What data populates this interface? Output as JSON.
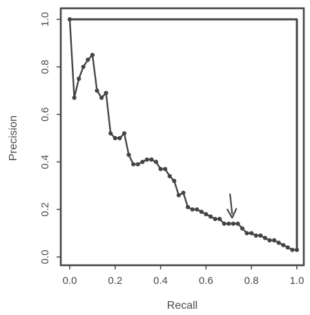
{
  "chart_data": {
    "type": "line",
    "xlabel": "Recall",
    "ylabel": "Precision",
    "xlim": [
      0,
      1
    ],
    "ylim": [
      0,
      1
    ],
    "grid": false,
    "x_ticks": [
      "0.0",
      "0.2",
      "0.4",
      "0.6",
      "0.8",
      "1.0"
    ],
    "y_ticks": [
      "0.0",
      "0.2",
      "0.4",
      "0.6",
      "0.8",
      "1.0"
    ],
    "series": [
      {
        "style": "step-line",
        "x": [
          0.0,
          0.0,
          1.0,
          1.0
        ],
        "y": [
          1.0,
          1.0,
          1.0,
          0.03
        ]
      },
      {
        "style": "line-with-markers",
        "x": [
          0.0,
          0.02,
          0.04,
          0.06,
          0.08,
          0.1,
          0.12,
          0.14,
          0.16,
          0.18,
          0.2,
          0.22,
          0.24,
          0.26,
          0.28,
          0.3,
          0.32,
          0.34,
          0.36,
          0.38,
          0.4,
          0.42,
          0.44,
          0.46,
          0.48,
          0.5,
          0.52,
          0.54,
          0.56,
          0.58,
          0.6,
          0.62,
          0.64,
          0.66,
          0.68,
          0.7,
          0.72,
          0.74,
          0.76,
          0.78,
          0.8,
          0.82,
          0.84,
          0.86,
          0.88,
          0.9,
          0.92,
          0.94,
          0.96,
          0.98,
          1.0
        ],
        "y": [
          1.0,
          0.67,
          0.75,
          0.8,
          0.83,
          0.85,
          0.7,
          0.67,
          0.69,
          0.52,
          0.5,
          0.5,
          0.52,
          0.43,
          0.39,
          0.39,
          0.4,
          0.41,
          0.41,
          0.4,
          0.37,
          0.37,
          0.34,
          0.32,
          0.26,
          0.27,
          0.21,
          0.2,
          0.2,
          0.19,
          0.18,
          0.17,
          0.16,
          0.16,
          0.14,
          0.14,
          0.14,
          0.14,
          0.12,
          0.1,
          0.1,
          0.09,
          0.09,
          0.08,
          0.07,
          0.07,
          0.06,
          0.05,
          0.04,
          0.03,
          0.03
        ]
      }
    ],
    "annotations": [
      {
        "type": "arrow",
        "x": 0.715,
        "y": 0.165,
        "direction": "down"
      }
    ],
    "colors": {
      "line": "#454545",
      "frame": "#454545",
      "text": "#4a4a4a"
    }
  }
}
